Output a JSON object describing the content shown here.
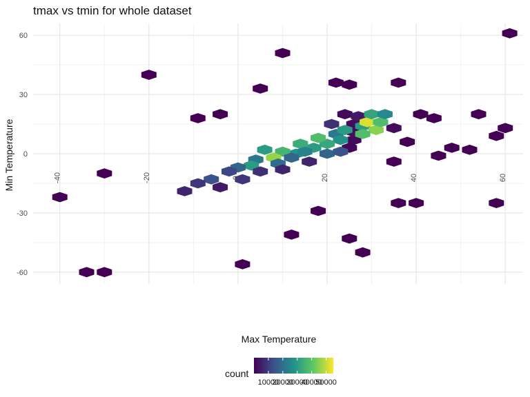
{
  "chart_data": {
    "type": "hexbin",
    "title": "tmax vs tmin for whole dataset",
    "xlabel": "Max Temperature",
    "ylabel": "Min Temperature",
    "xlim": [
      -46,
      64
    ],
    "ylim": [
      -66,
      66
    ],
    "x_ticks": [
      -40,
      -20,
      0,
      20,
      40,
      60
    ],
    "x_tick_labels": [
      "-40",
      "-20",
      "0",
      "20",
      "40",
      "60"
    ],
    "y_ticks": [
      -60,
      -30,
      0,
      30,
      60
    ],
    "y_tick_labels": [
      "-60",
      "-30",
      "0",
      "30",
      "60"
    ],
    "grid": true,
    "legend": {
      "title": "count",
      "position": "bottom",
      "range": [
        0,
        55000
      ],
      "ticks": [
        10000,
        20000,
        30000,
        40000,
        50000
      ],
      "tick_labels": [
        "10000",
        "20000",
        "30000",
        "40000",
        "50000"
      ],
      "colors": [
        "#440154",
        "#3b528b",
        "#21918c",
        "#5ec962",
        "#fde725"
      ]
    },
    "bins": [
      {
        "x": 10,
        "y": 51,
        "count": 1
      },
      {
        "x": -20,
        "y": 40,
        "count": 1
      },
      {
        "x": 5,
        "y": 33,
        "count": 1
      },
      {
        "x": -40,
        "y": -22,
        "count": 1
      },
      {
        "x": -30,
        "y": -10,
        "count": 1
      },
      {
        "x": -30,
        "y": -60,
        "count": 1
      },
      {
        "x": -34,
        "y": -60,
        "count": 1
      },
      {
        "x": 1,
        "y": -56,
        "count": 1
      },
      {
        "x": 25,
        "y": -43,
        "count": 1
      },
      {
        "x": 28,
        "y": -50,
        "count": 1
      },
      {
        "x": 18,
        "y": -29,
        "count": 1
      },
      {
        "x": 12,
        "y": -41,
        "count": 1
      },
      {
        "x": 36,
        "y": -25,
        "count": 1
      },
      {
        "x": 40,
        "y": -25,
        "count": 1
      },
      {
        "x": 61,
        "y": 61,
        "count": 1
      },
      {
        "x": 60,
        "y": 13,
        "count": 1
      },
      {
        "x": 58,
        "y": 9,
        "count": 1
      },
      {
        "x": 58,
        "y": -25,
        "count": 1
      },
      {
        "x": 48,
        "y": 3,
        "count": 1
      },
      {
        "x": 54,
        "y": 20,
        "count": 1
      },
      {
        "x": 52,
        "y": 2,
        "count": 1
      },
      {
        "x": 45,
        "y": -1,
        "count": 1
      },
      {
        "x": 35,
        "y": -4,
        "count": 1
      },
      {
        "x": 25,
        "y": 35,
        "count": 1
      },
      {
        "x": 22,
        "y": 36,
        "count": 1
      },
      {
        "x": 36,
        "y": 36,
        "count": 1
      },
      {
        "x": -9,
        "y": 18,
        "count": 1
      },
      {
        "x": -4,
        "y": 20,
        "count": 1
      },
      {
        "x": 41,
        "y": 20,
        "count": 1
      },
      {
        "x": 44,
        "y": 18,
        "count": 1
      },
      {
        "x": 38,
        "y": 6,
        "count": 1
      },
      {
        "x": 26,
        "y": 15,
        "count": 2000
      },
      {
        "x": 26,
        "y": 11,
        "count": 2000
      },
      {
        "x": 26,
        "y": 7,
        "count": 1500
      },
      {
        "x": 25,
        "y": 3,
        "count": 1000
      },
      {
        "x": 24,
        "y": 20,
        "count": 1500
      },
      {
        "x": 21,
        "y": 15,
        "count": 8000
      },
      {
        "x": 22,
        "y": 10,
        "count": 22000
      },
      {
        "x": 23,
        "y": 7,
        "count": 28000
      },
      {
        "x": 24,
        "y": 12,
        "count": 30000
      },
      {
        "x": 27,
        "y": 19,
        "count": 4000
      },
      {
        "x": 28,
        "y": 14,
        "count": 30000
      },
      {
        "x": 29,
        "y": 16,
        "count": 52000
      },
      {
        "x": 30,
        "y": 20,
        "count": 32000
      },
      {
        "x": 31,
        "y": 12,
        "count": 45000
      },
      {
        "x": 28,
        "y": 10,
        "count": 38000
      },
      {
        "x": 32,
        "y": 16,
        "count": 38000
      },
      {
        "x": 33,
        "y": 20,
        "count": 26000
      },
      {
        "x": 35,
        "y": 13,
        "count": 2000
      },
      {
        "x": 20,
        "y": 5,
        "count": 33000
      },
      {
        "x": 18,
        "y": 8,
        "count": 38000
      },
      {
        "x": 17,
        "y": 3,
        "count": 30000
      },
      {
        "x": 14,
        "y": 5,
        "count": 34000
      },
      {
        "x": 13,
        "y": 0,
        "count": 28000
      },
      {
        "x": 10,
        "y": 1,
        "count": 36000
      },
      {
        "x": 8,
        "y": -2,
        "count": 46000
      },
      {
        "x": 6,
        "y": 2,
        "count": 30000
      },
      {
        "x": 4,
        "y": -3,
        "count": 22000
      },
      {
        "x": 3,
        "y": -6,
        "count": 30000
      },
      {
        "x": 0,
        "y": -7,
        "count": 18000
      },
      {
        "x": -2,
        "y": -9,
        "count": 12000
      },
      {
        "x": -6,
        "y": -13,
        "count": 14000
      },
      {
        "x": 9,
        "y": -5,
        "count": 20000
      },
      {
        "x": 12,
        "y": -2,
        "count": 18000
      },
      {
        "x": 15,
        "y": 1,
        "count": 24000
      },
      {
        "x": 20,
        "y": 0,
        "count": 18000
      },
      {
        "x": 23,
        "y": 1,
        "count": 14000
      },
      {
        "x": -9,
        "y": -15,
        "count": 9000
      },
      {
        "x": 1,
        "y": -13,
        "count": 9000
      },
      {
        "x": 5,
        "y": -9,
        "count": 8000
      },
      {
        "x": -4,
        "y": -17,
        "count": 4000
      },
      {
        "x": -12,
        "y": -19,
        "count": 6000
      },
      {
        "x": 10,
        "y": -8,
        "count": 6000
      },
      {
        "x": 16,
        "y": -4,
        "count": 6000
      }
    ]
  }
}
